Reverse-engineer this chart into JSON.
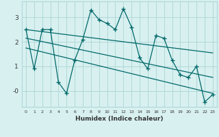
{
  "xlabel": "Humidex (Indice chaleur)",
  "bg_color": "#d8f0f0",
  "grid_color": "#b0d8d8",
  "line_color": "#006868",
  "xlim": [
    -0.5,
    23.5
  ],
  "ylim": [
    -0.65,
    3.65
  ],
  "xtick_labels": [
    "0",
    "1",
    "2",
    "3",
    "4",
    "5",
    "6",
    "7",
    "8",
    "9",
    "10",
    "11",
    "12",
    "13",
    "14",
    "15",
    "16",
    "17",
    "18",
    "19",
    "20",
    "21",
    "22",
    "23"
  ],
  "ytick_labels": [
    "-0",
    "1",
    "2",
    "3"
  ],
  "ytick_vals": [
    0,
    1,
    2,
    3
  ],
  "series1_x": [
    0,
    1,
    2,
    3,
    4,
    5,
    6,
    7,
    8,
    9,
    10,
    11,
    12,
    13,
    14,
    15,
    16,
    17,
    18,
    19,
    20,
    21,
    22,
    23
  ],
  "series1_y": [
    2.5,
    0.9,
    2.5,
    2.5,
    0.35,
    -0.1,
    1.25,
    2.1,
    3.3,
    2.9,
    2.75,
    2.5,
    3.35,
    2.6,
    1.35,
    0.9,
    2.25,
    2.15,
    1.25,
    0.65,
    0.55,
    1.0,
    -0.45,
    -0.15
  ],
  "trend1_x": [
    0,
    23
  ],
  "trend1_y": [
    2.5,
    1.55
  ],
  "trend2_x": [
    0,
    23
  ],
  "trend2_y": [
    2.15,
    0.55
  ],
  "trend3_x": [
    0,
    23
  ],
  "trend3_y": [
    1.75,
    -0.1
  ]
}
